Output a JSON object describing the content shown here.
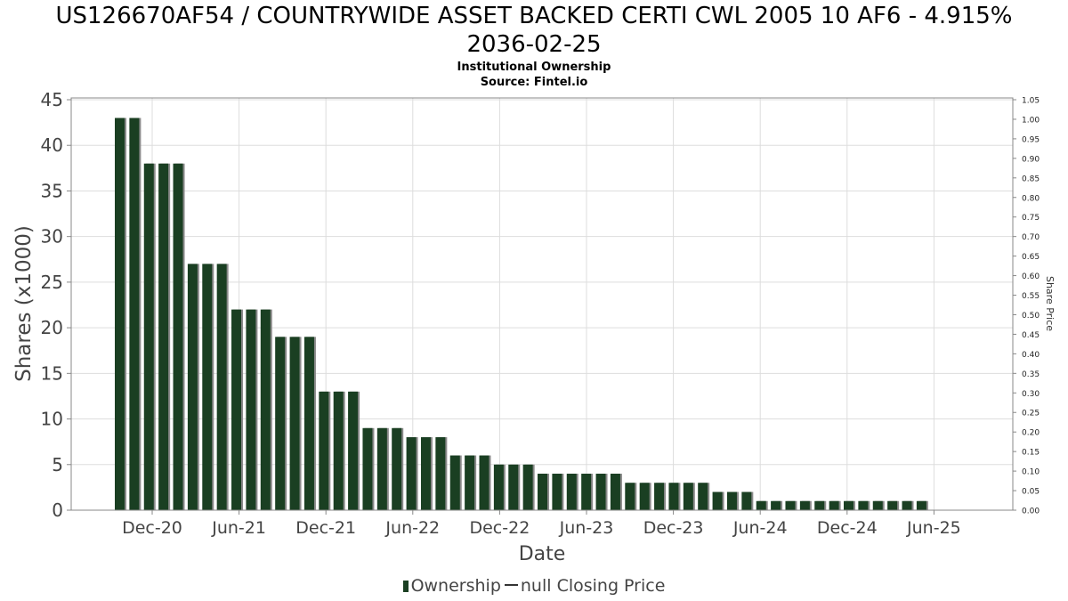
{
  "title_line1": "US126670AF54 / COUNTRYWIDE ASSET BACKED CERTI CWL 2005 10 AF6 - 4.915%",
  "title_line2": "2036-02-25",
  "subtitle_line1": "Institutional Ownership",
  "subtitle_line2": "Source: Fintel.io",
  "legend": {
    "ownership_label": "Ownership",
    "price_label": "null Closing Price"
  },
  "colors": {
    "bar": "#1a3f22",
    "bar_shadow": "#8a8a8a",
    "grid": "#dddddd",
    "axis_text": "#444444"
  },
  "chart_data": {
    "type": "bar",
    "title": "US126670AF54 / COUNTRYWIDE ASSET BACKED CERTI CWL 2005 10 AF6 - 4.915% 2036-02-25",
    "xlabel": "Date",
    "ylabel": "Shares (x1000)",
    "y2label": "Share Price",
    "ylim": [
      0,
      45
    ],
    "y2lim": [
      0,
      1.05
    ],
    "yticks": [
      0,
      5,
      10,
      15,
      20,
      25,
      30,
      35,
      40,
      45
    ],
    "y2ticks": [
      "0.00",
      "0.05",
      "0.10",
      "0.15",
      "0.20",
      "0.25",
      "0.30",
      "0.35",
      "0.40",
      "0.45",
      "0.50",
      "0.55",
      "0.60",
      "0.65",
      "0.70",
      "0.75",
      "0.80",
      "0.85",
      "0.90",
      "0.95",
      "1.00",
      "1.05"
    ],
    "xticks": [
      "Dec-20",
      "Jun-21",
      "Dec-21",
      "Jun-22",
      "Dec-22",
      "Jun-23",
      "Dec-23",
      "Jun-24",
      "Dec-24",
      "Jun-25"
    ],
    "grid": true,
    "legend_position": "bottom",
    "series": [
      {
        "name": "Ownership",
        "values": [
          43,
          43,
          38,
          38,
          38,
          27,
          27,
          27,
          22,
          22,
          22,
          19,
          19,
          19,
          13,
          13,
          13,
          9,
          9,
          9,
          8,
          8,
          8,
          6,
          6,
          6,
          5,
          5,
          5,
          4,
          4,
          4,
          4,
          4,
          4,
          3,
          3,
          3,
          3,
          3,
          3,
          2,
          2,
          2,
          1,
          1,
          1,
          1,
          1,
          1,
          1,
          1,
          1,
          1,
          1,
          1
        ]
      }
    ]
  }
}
